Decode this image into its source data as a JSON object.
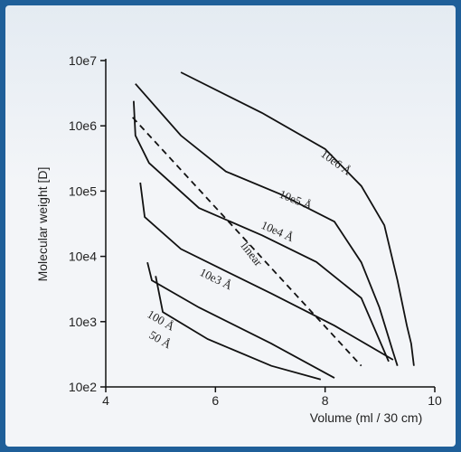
{
  "chart_data": {
    "type": "line",
    "log_y": true,
    "y_label": "Molecular weight [D]",
    "x_label": "Volume (ml / 30 cm)",
    "xlim": [
      4,
      10
    ],
    "xticks": [
      4,
      6,
      8,
      10
    ],
    "ylim": [
      100,
      10000000
    ],
    "yticks": [
      {
        "value": 100,
        "label": "10e2"
      },
      {
        "value": 1000,
        "label": "10e3"
      },
      {
        "value": 10000,
        "label": "10e4"
      },
      {
        "value": 100000,
        "label": "10e5"
      },
      {
        "value": 1000000,
        "label": "10e6"
      },
      {
        "value": 10000000,
        "label": "10e7"
      }
    ],
    "series": [
      {
        "name": "10e6 Å",
        "color": "#111111",
        "style": "solid",
        "x": [
          5.37,
          6.85,
          8.0,
          8.66,
          9.08,
          9.32,
          9.49,
          9.57,
          9.62
        ],
        "values": [
          6600000,
          1580000,
          440000,
          120000,
          30000,
          4300,
          870,
          460,
          210
        ]
      },
      {
        "name": "10e5 Å",
        "color": "#111111",
        "style": "solid",
        "x": [
          4.54,
          5.37,
          6.19,
          7.18,
          8.17,
          8.66,
          8.99,
          9.24,
          9.32
        ],
        "values": [
          4400000,
          710000,
          200000,
          90000,
          34000,
          8100,
          1650,
          340,
          210
        ]
      },
      {
        "name": "10e4 Å",
        "color": "#111111",
        "style": "solid",
        "x": [
          4.51,
          4.54,
          4.79,
          5.7,
          6.85,
          7.84,
          8.66,
          9.16
        ],
        "values": [
          2400000,
          710000,
          270000,
          55000,
          21000,
          8200,
          2300,
          245
        ]
      },
      {
        "name": "linear",
        "color": "#111111",
        "style": "dashed",
        "x": [
          4.49,
          8.66
        ],
        "values": [
          1350000,
          210
        ]
      },
      {
        "name": "10e3 Å",
        "color": "#111111",
        "style": "solid",
        "x": [
          4.63,
          4.71,
          5.37,
          6.03,
          7.02,
          8.17,
          9.24
        ],
        "values": [
          135000,
          40000,
          13000,
          6900,
          2700,
          870,
          260
        ]
      },
      {
        "name": "100 Å",
        "color": "#111111",
        "style": "solid",
        "x": [
          4.76,
          4.84,
          5.7,
          7.02,
          8.17
        ],
        "values": [
          8100,
          4300,
          1650,
          460,
          137
        ]
      },
      {
        "name": "50 Å",
        "color": "#111111",
        "style": "solid",
        "x": [
          4.91,
          5.04,
          5.86,
          7.02,
          7.92
        ],
        "values": [
          5000,
          1400,
          540,
          210,
          130
        ]
      }
    ]
  }
}
